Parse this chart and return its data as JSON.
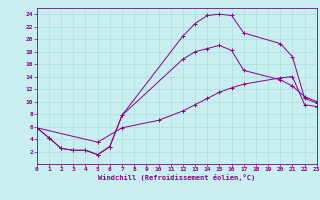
{
  "xlabel": "Windchill (Refroidissement éolien,°C)",
  "bg_color": "#c8eef0",
  "grid_color": "#aadddd",
  "line_color": "#880088",
  "xlim": [
    0,
    23
  ],
  "ylim": [
    0,
    25
  ],
  "xticks": [
    0,
    1,
    2,
    3,
    4,
    5,
    6,
    7,
    8,
    9,
    10,
    11,
    12,
    13,
    14,
    15,
    16,
    17,
    18,
    19,
    20,
    21,
    22,
    23
  ],
  "yticks": [
    2,
    4,
    6,
    8,
    10,
    12,
    14,
    16,
    18,
    20,
    22,
    24
  ],
  "curve1_x": [
    0,
    1,
    2,
    3,
    4,
    5,
    6,
    7,
    12,
    13,
    14,
    15,
    16,
    17,
    20,
    21,
    22,
    23
  ],
  "curve1_y": [
    5.8,
    4.2,
    2.5,
    2.2,
    2.2,
    1.5,
    2.8,
    7.8,
    20.5,
    22.5,
    23.8,
    24.0,
    23.8,
    21.0,
    19.3,
    17.2,
    10.5,
    9.8
  ],
  "curve2_x": [
    0,
    1,
    2,
    3,
    4,
    5,
    6,
    7,
    12,
    13,
    14,
    15,
    16,
    17,
    20,
    21,
    22,
    23
  ],
  "curve2_y": [
    5.8,
    4.2,
    2.5,
    2.2,
    2.2,
    1.5,
    2.8,
    7.8,
    16.8,
    18.0,
    18.5,
    19.0,
    18.2,
    15.0,
    13.5,
    12.5,
    10.8,
    10.0
  ],
  "curve3_x": [
    0,
    5,
    7,
    10,
    12,
    13,
    14,
    15,
    16,
    17,
    20,
    21,
    22,
    23
  ],
  "curve3_y": [
    5.8,
    3.5,
    5.8,
    7.0,
    8.5,
    9.5,
    10.5,
    11.5,
    12.2,
    12.8,
    13.8,
    14.0,
    9.5,
    9.2
  ]
}
